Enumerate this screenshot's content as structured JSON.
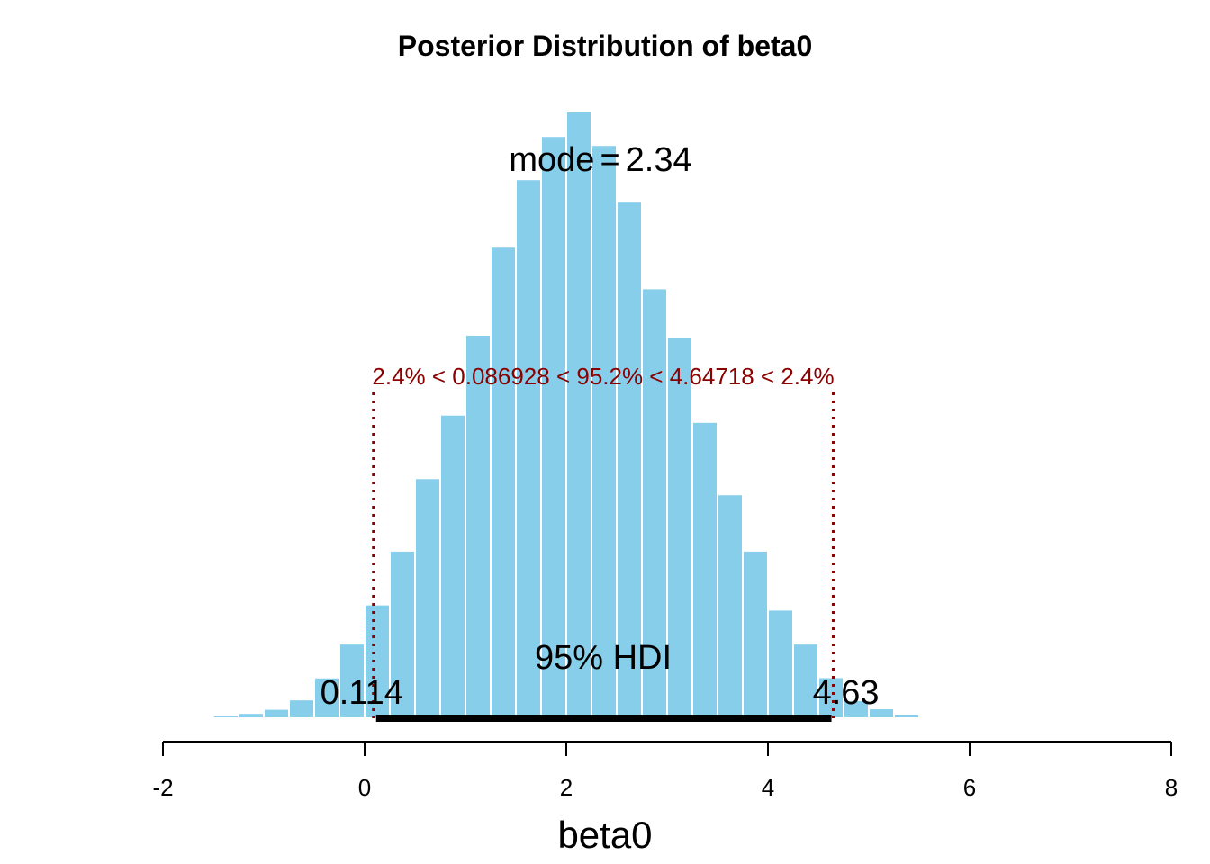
{
  "chart_data": {
    "type": "bar",
    "title": "Posterior Distribution of beta0",
    "xlabel": "beta0",
    "ylabel": "",
    "xlim": [
      -2,
      8
    ],
    "x_ticks": [
      -2,
      0,
      2,
      4,
      6,
      8
    ],
    "x_tick_labels": [
      "-2",
      "0",
      "2",
      "4",
      "6",
      "8"
    ],
    "bin_width": 0.25,
    "bin_edges_start": -1.5,
    "relative_heights": [
      0.0045,
      0.0086,
      0.0154,
      0.0309,
      0.0671,
      0.1229,
      0.1875,
      0.2761,
      0.3957,
      0.5004,
      0.6321,
      0.7771,
      0.8884,
      0.9596,
      1.0,
      0.9448,
      0.8514,
      0.7086,
      0.6277,
      0.4884,
      0.3691,
      0.2761,
      0.1789,
      0.1229,
      0.0675,
      0.0296,
      0.0162,
      0.0074,
      0.0012
    ],
    "bar_color": "#87ceeb",
    "grid": false,
    "legend": "none",
    "mode_label": "mode",
    "mode_eq": "=",
    "mode_value": "2.34",
    "hdi_label": "95% HDI",
    "hdi_low": 0.114,
    "hdi_high": 4.63,
    "hdi_low_label": "0.114",
    "hdi_high_label": "4.63",
    "rope_low": 0.086928,
    "rope_high": 4.64718,
    "rope_text": "2.4% < 0.086928 < 95.2% < 4.64718 < 2.4%",
    "rope_color": "#8b0000"
  }
}
